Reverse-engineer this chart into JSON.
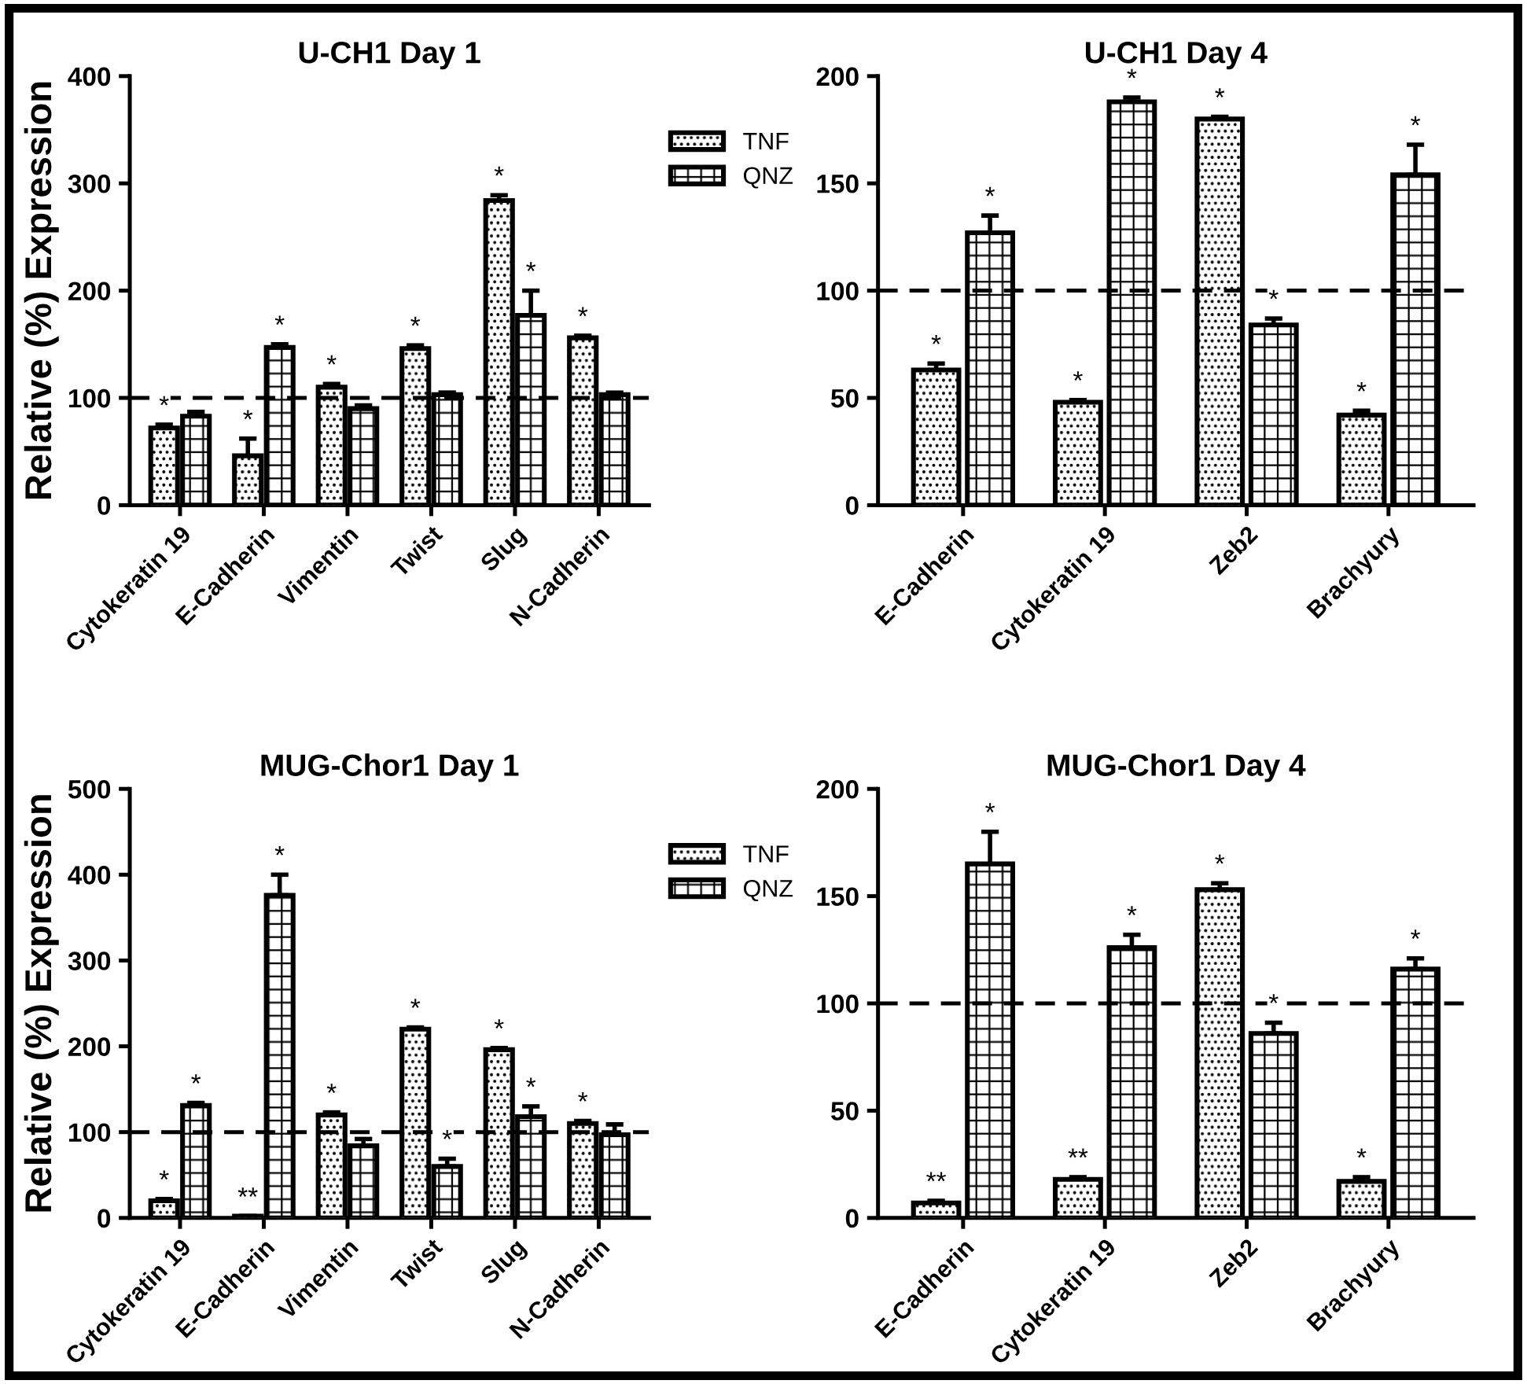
{
  "chart_data": [
    {
      "type": "bar",
      "title": "U-CH1 Day 1",
      "ylabel": "Relative (%) Expression",
      "categories": [
        "Cytokeratin 19",
        "E-Cadherin",
        "Vimentin",
        "Twist",
        "Slug",
        "N-Cadherin"
      ],
      "ylim": [
        0,
        400
      ],
      "yticks": [
        0,
        100,
        200,
        300,
        400
      ],
      "legend": "top right",
      "grid": false,
      "ref_lines": [
        {
          "axis": "y",
          "value": 100,
          "color": "#000000",
          "line_style": "dashed"
        }
      ],
      "series": [
        {
          "name": "TNF",
          "color": "#000000",
          "values": [
            72,
            46,
            110,
            146,
            284,
            156
          ],
          "errors": [
            [
              72,
              75
            ],
            [
              46,
              62
            ],
            [
              110,
              113
            ],
            [
              146,
              149
            ],
            [
              284,
              289
            ],
            [
              156,
              158
            ]
          ],
          "value_labels": [
            "*",
            "*",
            "*",
            "*",
            "*",
            "*"
          ]
        },
        {
          "name": "QNZ",
          "color": "#000000",
          "values": [
            83,
            147,
            90,
            103,
            177,
            103
          ],
          "errors": [
            [
              83,
              87
            ],
            [
              147,
              150
            ],
            [
              90,
              93
            ],
            [
              103,
              105
            ],
            [
              177,
              200
            ],
            [
              103,
              105
            ]
          ],
          "value_labels": [
            null,
            "*",
            null,
            null,
            "*",
            null
          ]
        }
      ]
    },
    {
      "type": "bar",
      "title": "U-CH1 Day 4",
      "categories": [
        "E-Cadherin",
        "Cytokeratin 19",
        "Zeb2",
        "Brachyury"
      ],
      "ylim": [
        0,
        200
      ],
      "yticks": [
        0,
        50,
        100,
        150,
        200
      ],
      "grid": false,
      "ref_lines": [
        {
          "axis": "y",
          "value": 100,
          "color": "#000000",
          "line_style": "dashed"
        }
      ],
      "series": [
        {
          "color": "#000000",
          "values": [
            63,
            48,
            180,
            42
          ],
          "errors": [
            [
              63,
              66
            ],
            [
              48,
              49
            ],
            [
              180,
              181
            ],
            [
              42,
              44
            ]
          ],
          "value_labels": [
            "*",
            "*",
            "*",
            "*"
          ]
        },
        {
          "color": "#000000",
          "values": [
            127,
            188,
            84,
            154
          ],
          "errors": [
            [
              127,
              135
            ],
            [
              188,
              190
            ],
            [
              84,
              87
            ],
            [
              154,
              168
            ]
          ],
          "value_labels": [
            "*",
            "*",
            "*",
            "*"
          ]
        }
      ]
    },
    {
      "type": "bar",
      "title": "MUG-Chor1 Day 1",
      "ylabel": "Relative (%) Expression",
      "categories": [
        "Cytokeratin 19",
        "E-Cadherin",
        "Vimentin",
        "Twist",
        "Slug",
        "N-Cadherin"
      ],
      "ylim": [
        0,
        500
      ],
      "yticks": [
        0,
        100,
        200,
        300,
        400,
        500
      ],
      "legend": "top right",
      "grid": false,
      "ref_lines": [
        {
          "axis": "y",
          "value": 100,
          "color": "#000000",
          "line_style": "dashed"
        }
      ],
      "series": [
        {
          "name": "TNF",
          "color": "#000000",
          "values": [
            20,
            2,
            120,
            220,
            196,
            110
          ],
          "errors": [
            [
              20,
              22
            ],
            [
              2,
              2
            ],
            [
              120,
              123
            ],
            [
              220,
              222
            ],
            [
              196,
              198
            ],
            [
              110,
              113
            ]
          ],
          "value_labels": [
            "*",
            "**",
            "*",
            "*",
            "*",
            "*"
          ]
        },
        {
          "name": "QNZ",
          "color": "#000000",
          "values": [
            131,
            376,
            84,
            60,
            118,
            97
          ],
          "errors": [
            [
              131,
              134
            ],
            [
              376,
              400
            ],
            [
              84,
              92
            ],
            [
              60,
              69
            ],
            [
              118,
              130
            ],
            [
              97,
              109
            ]
          ],
          "value_labels": [
            "*",
            "*",
            null,
            "*",
            "*",
            null
          ]
        }
      ]
    },
    {
      "type": "bar",
      "title": "MUG-Chor1 Day 4",
      "categories": [
        "E-Cadherin",
        "Cytokeratin 19",
        "Zeb2",
        "Brachyury"
      ],
      "ylim": [
        0,
        200
      ],
      "yticks": [
        0,
        50,
        100,
        150,
        200
      ],
      "grid": false,
      "ref_lines": [
        {
          "axis": "y",
          "value": 100,
          "color": "#000000",
          "line_style": "dashed"
        }
      ],
      "series": [
        {
          "color": "#000000",
          "values": [
            7,
            18,
            153,
            17
          ],
          "errors": [
            [
              7,
              8
            ],
            [
              18,
              19
            ],
            [
              153,
              156
            ],
            [
              17,
              19
            ]
          ],
          "value_labels": [
            "**",
            "**",
            "*",
            "*"
          ]
        },
        {
          "color": "#000000",
          "values": [
            165,
            126,
            86,
            116
          ],
          "errors": [
            [
              165,
              180
            ],
            [
              126,
              132
            ],
            [
              86,
              91
            ],
            [
              116,
              121
            ]
          ],
          "value_labels": [
            "*",
            "*",
            "*",
            "*"
          ]
        }
      ]
    }
  ]
}
